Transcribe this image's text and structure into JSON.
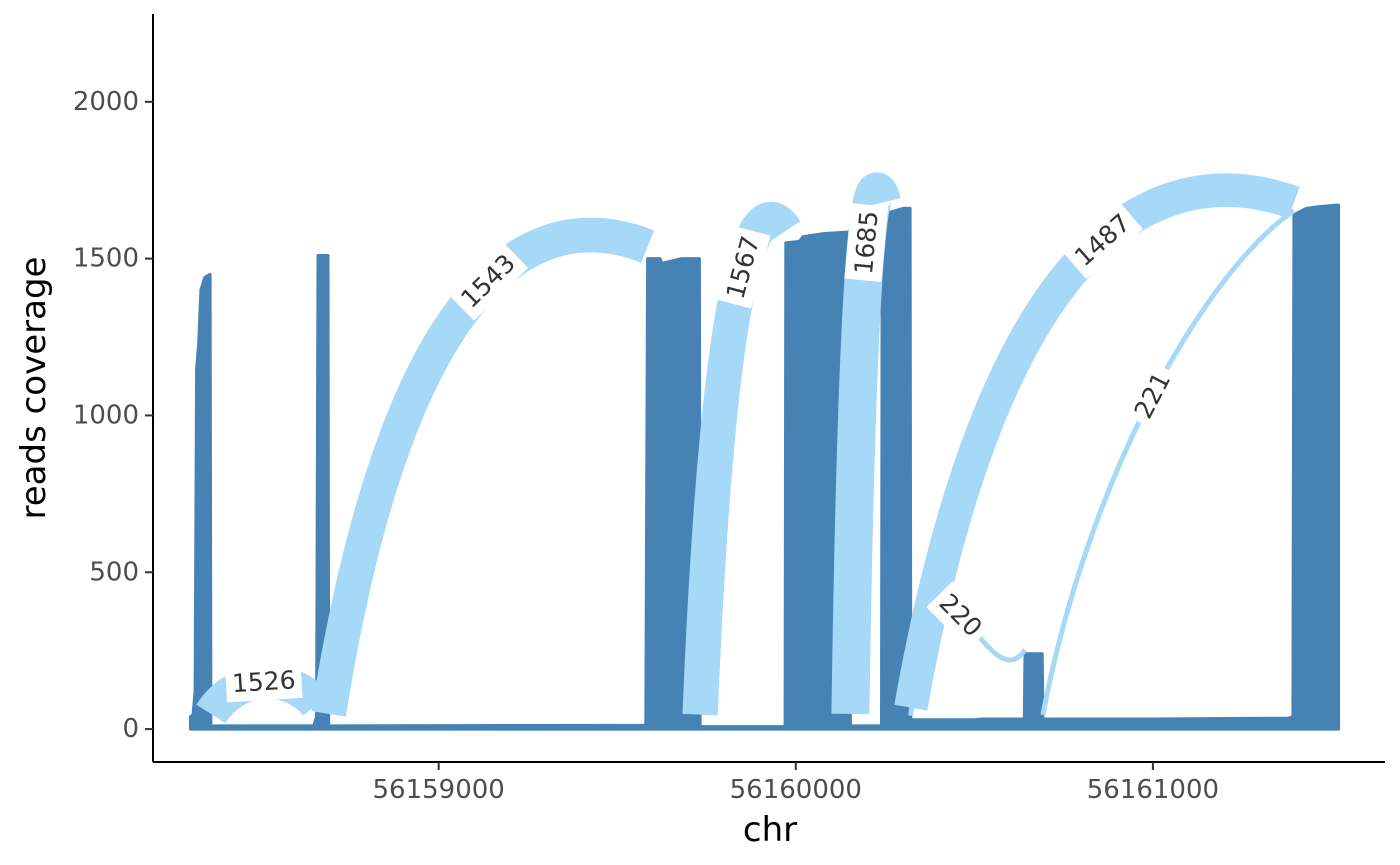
{
  "chart_data": {
    "type": "area",
    "title": "",
    "xlabel": "chr",
    "ylabel": "reads coverage",
    "xlim": [
      56158200,
      56161650
    ],
    "ylim": [
      -105,
      2280
    ],
    "x_ticks": [
      56159000,
      56160000,
      56161000
    ],
    "x_tick_labels": [
      "56159000",
      "56160000",
      "56161000"
    ],
    "y_ticks": [
      0,
      500,
      1000,
      1500,
      2000
    ],
    "y_tick_labels": [
      "0",
      "500",
      "1000",
      "1500",
      "2000"
    ],
    "grid": false,
    "legend": "none",
    "colors": {
      "coverage": "#4682b4",
      "junction": "#a6d8f7",
      "axis": "#000000"
    },
    "coverage_profile": [
      [
        56158305,
        0
      ],
      [
        56158305,
        40
      ],
      [
        56158312,
        45
      ],
      [
        56158318,
        120
      ],
      [
        56158322,
        1150
      ],
      [
        56158328,
        1230
      ],
      [
        56158334,
        1400
      ],
      [
        56158345,
        1440
      ],
      [
        56158360,
        1450
      ],
      [
        56158362,
        10
      ],
      [
        56158650,
        10
      ],
      [
        56158658,
        40
      ],
      [
        56158662,
        1510
      ],
      [
        56158690,
        1510
      ],
      [
        56158692,
        10
      ],
      [
        56159580,
        12
      ],
      [
        56159585,
        1500
      ],
      [
        56159620,
        1500
      ],
      [
        56159625,
        1485
      ],
      [
        56159680,
        1500
      ],
      [
        56159730,
        1500
      ],
      [
        56159732,
        8
      ],
      [
        56159970,
        8
      ],
      [
        56159972,
        1550
      ],
      [
        56160010,
        1555
      ],
      [
        56160020,
        1570
      ],
      [
        56160080,
        1580
      ],
      [
        56160150,
        1585
      ],
      [
        56160153,
        10
      ],
      [
        56160240,
        10
      ],
      [
        56160242,
        1640
      ],
      [
        56160300,
        1660
      ],
      [
        56160320,
        1660
      ],
      [
        56160322,
        30
      ],
      [
        56160500,
        30
      ],
      [
        56160520,
        32
      ],
      [
        56160640,
        32
      ],
      [
        56160642,
        240
      ],
      [
        56160690,
        240
      ],
      [
        56160692,
        32
      ],
      [
        56161000,
        32
      ],
      [
        56161380,
        35
      ],
      [
        56161392,
        40
      ],
      [
        56161395,
        1640
      ],
      [
        56161430,
        1660
      ],
      [
        56161460,
        1665
      ],
      [
        56161510,
        1670
      ],
      [
        56161520,
        1670
      ],
      [
        56161520,
        0
      ]
    ],
    "junctions": [
      {
        "label": "1526",
        "start": 56158362,
        "end": 56158658,
        "count": 1526,
        "side": "top"
      },
      {
        "label": "1543",
        "start": 56158692,
        "end": 56159585,
        "count": 1543,
        "side": "top"
      },
      {
        "label": "1567",
        "start": 56159732,
        "end": 56159972,
        "count": 1567,
        "side": "top"
      },
      {
        "label": "1685",
        "start": 56160153,
        "end": 56160242,
        "count": 1685,
        "side": "top"
      },
      {
        "label": "1487",
        "start": 56160322,
        "end": 56161395,
        "count": 1487,
        "side": "top"
      },
      {
        "label": "220",
        "start": 56160322,
        "end": 56160642,
        "count": 220,
        "side": "inner"
      },
      {
        "label": "221",
        "start": 56160692,
        "end": 56161395,
        "count": 221,
        "side": "inner"
      }
    ]
  }
}
